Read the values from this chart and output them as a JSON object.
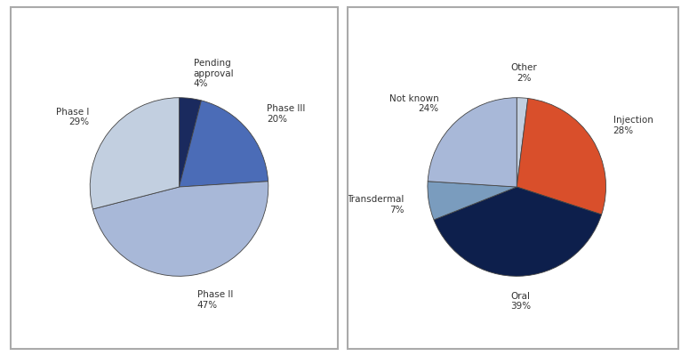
{
  "chart1": {
    "labels": [
      "Pending\napproval",
      "Phase III",
      "Phase II",
      "Phase I"
    ],
    "values": [
      4,
      20,
      47,
      29
    ],
    "colors": [
      "#1a2a5e",
      "#4b6cb7",
      "#a8b8d8",
      "#c2cfe0"
    ],
    "startangle": 90
  },
  "chart2": {
    "labels": [
      "Other",
      "Injection",
      "Oral",
      "Transdermal",
      "Not known"
    ],
    "values": [
      2,
      28,
      39,
      7,
      24
    ],
    "colors": [
      "#c2cfe0",
      "#d94f2b",
      "#0d1f4c",
      "#7a9cbe",
      "#a8b8d8"
    ],
    "startangle": 90
  },
  "figure": {
    "bg_color": "#ffffff",
    "box_color": "#aaaaaa",
    "text_color": "#333333",
    "font_size": 7.5
  }
}
